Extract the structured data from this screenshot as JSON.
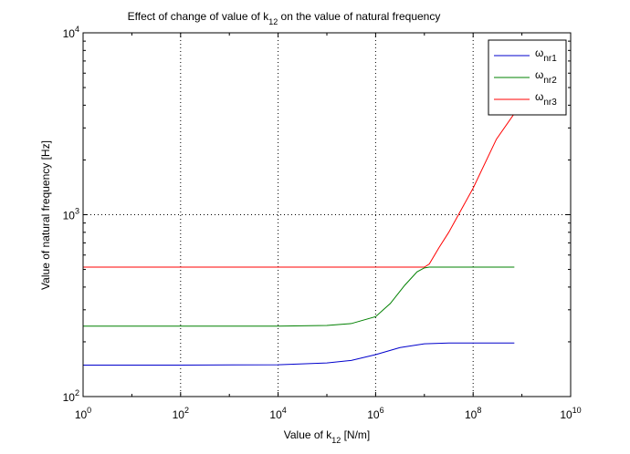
{
  "chart_data": {
    "type": "line",
    "title": {
      "main": "Effect of change of value of k",
      "sub": "12",
      "tail": " on the value of natural frequency"
    },
    "xlabel": {
      "main": "Value of k",
      "sub": "12",
      "tail": " [N/m]"
    },
    "ylabel": "Value of natural frequency [Hz]",
    "x_scale": "log",
    "y_scale": "log",
    "xlim": [
      1,
      10000000000
    ],
    "ylim": [
      100,
      10000
    ],
    "x_ticks": [
      {
        "value": 1,
        "base": "10",
        "exp": "0"
      },
      {
        "value": 100,
        "base": "10",
        "exp": "2"
      },
      {
        "value": 10000,
        "base": "10",
        "exp": "4"
      },
      {
        "value": 1000000,
        "base": "10",
        "exp": "6"
      },
      {
        "value": 100000000,
        "base": "10",
        "exp": "8"
      },
      {
        "value": 10000000000,
        "base": "10",
        "exp": "10"
      }
    ],
    "y_ticks": [
      {
        "value": 100,
        "base": "10",
        "exp": "2"
      },
      {
        "value": 1000,
        "base": "10",
        "exp": "3"
      },
      {
        "value": 10000,
        "base": "10",
        "exp": "4"
      }
    ],
    "grid": true,
    "legend_position": "top-right",
    "series": [
      {
        "name": {
          "main": "ω",
          "sub": "nr1"
        },
        "color": "#0000cc",
        "x": [
          1,
          100,
          10000,
          100000,
          316228,
          1000000,
          3162278,
          10000000,
          31622777,
          100000000,
          700000000
        ],
        "y": [
          149,
          149,
          149.5,
          153,
          158,
          170,
          186,
          195,
          197,
          197,
          197
        ]
      },
      {
        "name": {
          "main": "ω",
          "sub": "nr2"
        },
        "color": "#008000",
        "x": [
          1,
          100,
          10000,
          100000,
          316228,
          1000000,
          2000000,
          3981072,
          7079458,
          10000000,
          12589254,
          31622777,
          100000000,
          700000000
        ],
        "y": [
          244,
          244,
          244,
          246,
          252,
          275,
          325,
          410,
          485,
          510,
          515,
          515,
          515,
          515
        ]
      },
      {
        "name": {
          "main": "ω",
          "sub": "nr3"
        },
        "color": "#ff0000",
        "x": [
          1,
          100,
          10000,
          1000000,
          10000000,
          12589254,
          20000000,
          31622777,
          100000000,
          300000000,
          700000000
        ],
        "y": [
          515,
          515,
          515,
          515,
          515,
          535,
          660,
          800,
          1400,
          2600,
          3600
        ]
      }
    ]
  }
}
